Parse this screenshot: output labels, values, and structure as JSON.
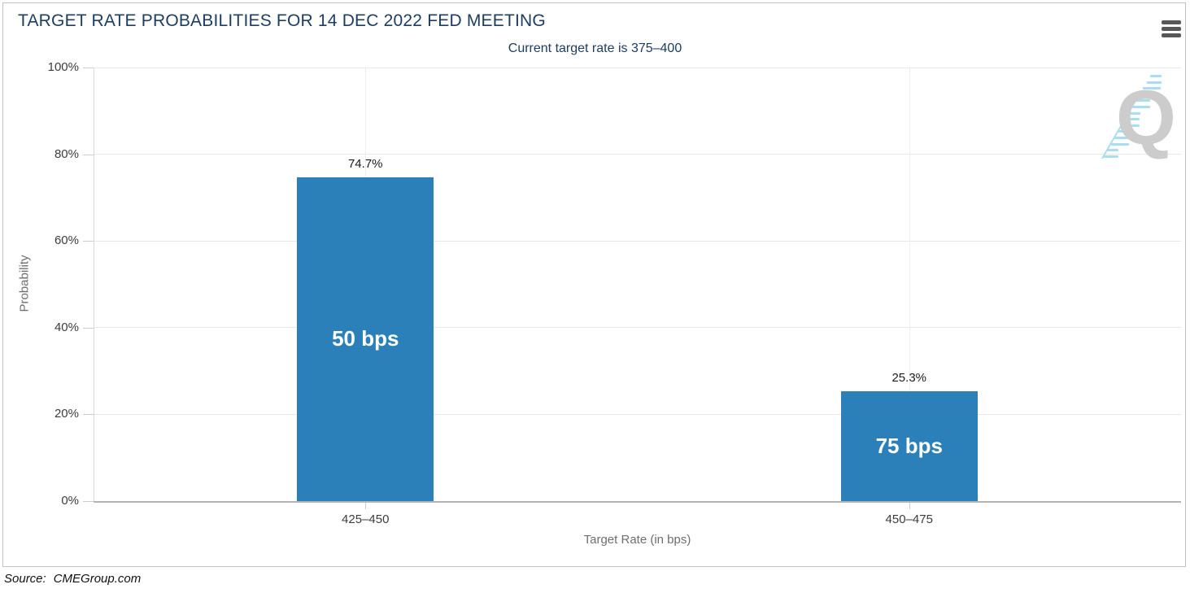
{
  "header": {
    "title": "TARGET RATE PROBABILITIES FOR 14 DEC 2022 FED MEETING",
    "subtitle": "Current target rate is 375–400",
    "menu_icon": "hamburger-icon"
  },
  "chart_data": {
    "type": "bar",
    "title": "TARGET RATE PROBABILITIES FOR 14 DEC 2022 FED MEETING",
    "subtitle": "Current target rate is 375–400",
    "categories": [
      "425–450",
      "450–475"
    ],
    "values": [
      74.7,
      25.3
    ],
    "value_labels": [
      "74.7%",
      "25.3%"
    ],
    "bar_labels": [
      "50 bps",
      "75 bps"
    ],
    "xlabel": "Target Rate (in bps)",
    "ylabel": "Probability",
    "ylim": [
      0,
      100
    ],
    "ytick_interval": 20,
    "ytick_labels": [
      "0%",
      "20%",
      "40%",
      "60%",
      "80%",
      "100%"
    ],
    "grid": true,
    "legend": "none"
  },
  "watermark": {
    "letter": "Q"
  },
  "footer": {
    "source_label": "Source:",
    "source_site": "CMEGroup.com"
  },
  "colors": {
    "bar": "#2c80b9",
    "bar_label_text": "#ffffff",
    "title_text": "#1e3d62",
    "tick_text": "#3c3c3c",
    "axis_title_text": "#6e6e6e",
    "grid_line": "#e8e8e8",
    "vgrid_line": "#ededed",
    "axis_line": "#b3b3b3",
    "yaxis_line": "#d9d9d9",
    "tick_mark": "#cccccc",
    "menu_icon": "#575757",
    "watermark_gray": "#cccccc",
    "watermark_blue": "#a8ddf2",
    "card_border": "#c2c2c2"
  }
}
